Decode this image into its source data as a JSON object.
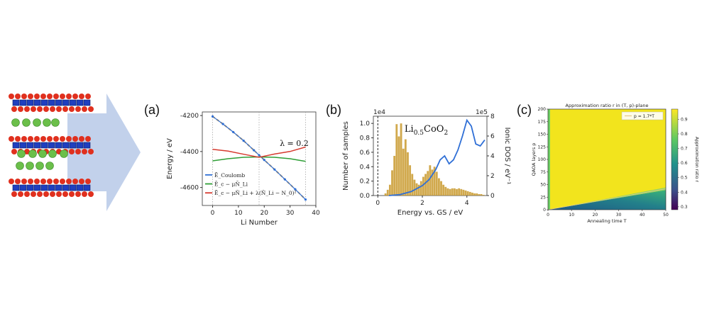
{
  "panels": {
    "a_label": "(a)",
    "b_label": "(b)",
    "c_label": "(c)"
  },
  "colors": {
    "oxygen": "#e0301e",
    "cobalt": "#1f3fbf",
    "lithium": "#6bbf4a",
    "arrow": "#b7c9e8",
    "blue": "#2f6fd6",
    "green": "#2e9e36",
    "red": "#d63a2f",
    "orange": "#e0a03a",
    "hist": "#c99a2e",
    "yellow": "#f2e41d",
    "teal": "#1f8a8a"
  },
  "chart_data": [
    {
      "id": "a",
      "type": "line",
      "xlabel": "Li Number",
      "ylabel": "Energy   / eV",
      "xlim": [
        -4,
        40
      ],
      "ylim": [
        -4700,
        -4180
      ],
      "xticks": [
        "0",
        "10",
        "20",
        "30",
        "40"
      ],
      "yticks": [
        "-4200",
        "-4400",
        "-4600"
      ],
      "annotation": "λ = 0.2",
      "series": [
        {
          "name": "Ē_Coulomb",
          "x": [
            0,
            4,
            8,
            12,
            16,
            18,
            20,
            24,
            28,
            32,
            36
          ],
          "y": [
            -4205,
            -4247,
            -4292,
            -4340,
            -4393,
            -4420,
            -4447,
            -4500,
            -4555,
            -4610,
            -4667
          ]
        },
        {
          "name": "Ē_c − μN̄_Li",
          "x": [
            0,
            6,
            12,
            18,
            24,
            30,
            36
          ],
          "y": [
            -4452,
            -4440,
            -4432,
            -4430,
            -4432,
            -4440,
            -4455
          ]
        },
        {
          "name": "Ē_c − μN̄_Li + λ(N̄_Li − N_0)²",
          "x": [
            0,
            6,
            12,
            18,
            24,
            30,
            36
          ],
          "y": [
            -4388,
            -4398,
            -4415,
            -4432,
            -4414,
            -4400,
            -4375
          ]
        }
      ]
    },
    {
      "id": "b",
      "type": "bar",
      "xlabel": "Energy vs. GS  / eV",
      "ylabel_left": "Number of samples",
      "ylabel_right": "Ionic DOS  / eV⁻¹",
      "left_exponent": "1e4",
      "right_exponent": "1e5",
      "xlim": [
        -0.2,
        4.9
      ],
      "ylim_left": [
        0,
        1.1
      ],
      "ylim_right": [
        0,
        8
      ],
      "xticks": [
        "0",
        "2",
        "4"
      ],
      "yticks_left": [
        "0.0",
        "0.2",
        "0.4",
        "0.6",
        "0.8",
        "1.0"
      ],
      "yticks_right": [
        "0",
        "2",
        "4",
        "6",
        "8"
      ],
      "title": "Li0.5CoO2",
      "histogram": {
        "bin_width": 0.1,
        "centers": [
          0.35,
          0.45,
          0.55,
          0.65,
          0.75,
          0.85,
          0.95,
          1.05,
          1.15,
          1.25,
          1.35,
          1.45,
          1.55,
          1.65,
          1.75,
          1.85,
          1.95,
          2.05,
          2.15,
          2.25,
          2.35,
          2.45,
          2.55,
          2.65,
          2.75,
          2.85,
          2.95,
          3.05,
          3.15,
          3.25,
          3.35,
          3.45,
          3.55,
          3.65,
          3.75,
          3.85,
          3.95,
          4.05,
          4.15,
          4.25,
          4.35,
          4.45,
          4.55,
          4.65,
          4.75
        ],
        "values": [
          0.03,
          0.08,
          0.15,
          0.35,
          0.55,
          0.99,
          0.82,
          1.0,
          0.65,
          0.78,
          0.6,
          0.42,
          0.3,
          0.22,
          0.17,
          0.15,
          0.2,
          0.26,
          0.3,
          0.34,
          0.42,
          0.36,
          0.4,
          0.33,
          0.24,
          0.2,
          0.15,
          0.12,
          0.1,
          0.09,
          0.1,
          0.1,
          0.09,
          0.1,
          0.09,
          0.08,
          0.07,
          0.06,
          0.05,
          0.04,
          0.03,
          0.03,
          0.02,
          0.02,
          0.01
        ]
      },
      "dos_curve": {
        "x": [
          0.5,
          1.0,
          1.5,
          2.0,
          2.3,
          2.6,
          2.8,
          3.0,
          3.2,
          3.4,
          3.6,
          3.8,
          4.0,
          4.2,
          4.4,
          4.6,
          4.8
        ],
        "y": [
          0.0,
          0.1,
          0.4,
          1.0,
          1.6,
          2.6,
          3.6,
          4.0,
          3.2,
          3.6,
          4.6,
          6.0,
          7.6,
          7.0,
          5.2,
          5.0,
          5.6
        ]
      }
    },
    {
      "id": "c",
      "type": "heatmap",
      "title": "Approximation ratio r in (T, p)-plane",
      "xlabel": "Annealing time T",
      "ylabel": "QAOA layers p",
      "xlim": [
        0,
        50
      ],
      "ylim": [
        0,
        200
      ],
      "xticks": [
        "0",
        "10",
        "20",
        "30",
        "40",
        "50"
      ],
      "yticks": [
        "0",
        "25",
        "50",
        "75",
        "100",
        "125",
        "150",
        "175",
        "200"
      ],
      "legend": "p = 1.7*T",
      "colorbar_label": "Approximation ratio r",
      "colorbar_ticks": [
        "0.3",
        "0.4",
        "0.5",
        "0.6",
        "0.7",
        "0.8",
        "0.9"
      ],
      "boundary_slope": 1.7
    }
  ]
}
